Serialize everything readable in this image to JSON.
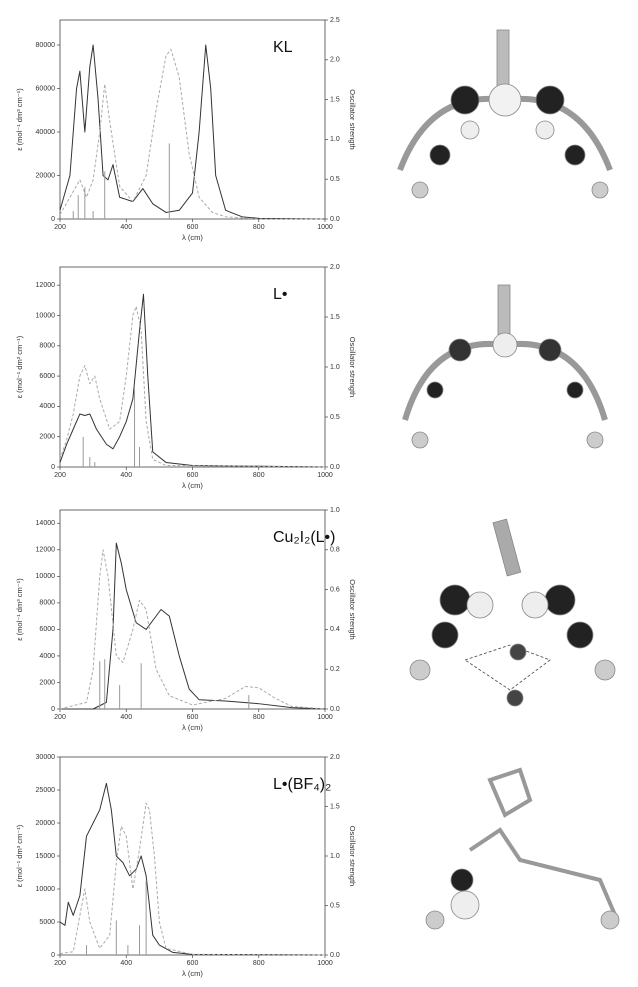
{
  "chart_data": [
    {
      "type": "line",
      "title": "KL",
      "xlabel": "λ (cm)",
      "ylabel": "ε (mol⁻¹ dm³ cm⁻¹)",
      "y2label": "Oscillator strength",
      "xlim": [
        200,
        1000
      ],
      "xticks": [
        200,
        400,
        600,
        800,
        1000
      ],
      "ylim": [
        0,
        91500
      ],
      "yticks": [
        0,
        20000,
        40000,
        60000,
        80000
      ],
      "y2lim": [
        0,
        2.5
      ],
      "y2ticks": [
        {
          "value": 0,
          "label": "0.0"
        },
        0.5,
        {
          "value": 1,
          "label": "1.0"
        },
        1.5,
        {
          "value": 2,
          "label": "2.0"
        },
        2.5
      ],
      "series": [
        {
          "color": "#333333",
          "x": [
            200,
            230,
            250,
            260,
            275,
            290,
            300,
            315,
            330,
            345,
            360,
            380,
            420,
            450,
            480,
            520,
            560,
            600,
            620,
            640,
            655,
            670,
            700,
            750,
            800,
            1000
          ],
          "values": [
            4000,
            20000,
            60000,
            68000,
            40000,
            70000,
            80000,
            55000,
            20000,
            18000,
            25000,
            10000,
            8000,
            14000,
            7000,
            3000,
            4000,
            12000,
            40000,
            80000,
            60000,
            20000,
            4000,
            1000,
            300,
            0
          ]
        },
        {
          "color": "#aaaaaa",
          "dash": true,
          "x": [
            200,
            230,
            260,
            280,
            300,
            320,
            335,
            350,
            380,
            420,
            460,
            490,
            520,
            535,
            560,
            590,
            620,
            660,
            700,
            800,
            1000
          ],
          "values": [
            2000,
            10000,
            18000,
            10000,
            18000,
            40000,
            62000,
            45000,
            15000,
            8000,
            20000,
            50000,
            75000,
            78000,
            65000,
            30000,
            10000,
            3000,
            1000,
            0,
            0
          ]
        },
        {
          "color": "#999999",
          "style": "stick",
          "axis": "y2",
          "x": [
            240,
            255,
            275,
            300,
            335,
            530
          ],
          "values": [
            0.1,
            0.3,
            0.4,
            0.1,
            0.6,
            0.95
          ]
        }
      ]
    },
    {
      "type": "line",
      "title": "L•",
      "xlabel": "λ (cm)",
      "ylabel": "ε (mol⁻¹ dm³ cm⁻¹)",
      "y2label": "Oscillator strength",
      "xlim": [
        200,
        1000
      ],
      "xticks": [
        200,
        400,
        600,
        800,
        1000
      ],
      "ylim": [
        0,
        13200
      ],
      "yticks": [
        0,
        2000,
        4000,
        6000,
        8000,
        10000,
        12000
      ],
      "y2lim": [
        0,
        2
      ],
      "y2ticks": [
        {
          "value": 0,
          "label": "0.0"
        },
        0.5,
        {
          "value": 1,
          "label": "1.0"
        },
        1.5,
        {
          "value": 2,
          "label": "2.0"
        }
      ],
      "series": [
        {
          "color": "#333333",
          "x": [
            200,
            220,
            240,
            260,
            275,
            290,
            310,
            340,
            360,
            380,
            400,
            420,
            440,
            452,
            465,
            480,
            520,
            600,
            1000
          ],
          "values": [
            300,
            1500,
            2500,
            3500,
            3400,
            3500,
            2500,
            1500,
            1200,
            2000,
            3000,
            4500,
            9000,
            11400,
            6000,
            1000,
            300,
            100,
            0
          ]
        },
        {
          "color": "#aaaaaa",
          "dash": true,
          "x": [
            200,
            220,
            240,
            260,
            275,
            290,
            305,
            320,
            350,
            380,
            400,
            420,
            430,
            445,
            460,
            480,
            520,
            1000
          ],
          "values": [
            500,
            1800,
            3500,
            6000,
            6700,
            5500,
            6000,
            4500,
            2500,
            3000,
            6000,
            10000,
            10600,
            9000,
            3000,
            500,
            100,
            0
          ]
        },
        {
          "color": "#999999",
          "style": "stick",
          "axis": "y2",
          "x": [
            270,
            290,
            305,
            425,
            440
          ],
          "values": [
            0.3,
            0.1,
            0.05,
            0.8,
            0.2
          ]
        }
      ]
    },
    {
      "type": "line",
      "title": "Cu₂I₂(L•)",
      "xlabel": "λ (cm)",
      "ylabel": "ε (mol⁻¹ dm³ cm⁻¹)",
      "y2label": "Oscillator strength",
      "xlim": [
        200,
        1000
      ],
      "xticks": [
        200,
        400,
        600,
        800,
        1000
      ],
      "ylim": [
        0,
        15000
      ],
      "yticks": [
        0,
        2000,
        4000,
        6000,
        8000,
        10000,
        12000,
        14000
      ],
      "y2lim": [
        0,
        1
      ],
      "y2ticks": [
        {
          "value": 0,
          "label": "0.0"
        },
        0.2,
        0.4,
        0.6,
        0.8,
        {
          "value": 1,
          "label": "1.0"
        }
      ],
      "series": [
        {
          "color": "#333333",
          "x": [
            200,
            300,
            340,
            360,
            370,
            385,
            400,
            430,
            460,
            490,
            505,
            530,
            560,
            590,
            620,
            700,
            800,
            900,
            1000
          ],
          "values": [
            0,
            0,
            500,
            6000,
            12500,
            11000,
            9000,
            6500,
            6000,
            7000,
            7500,
            7000,
            4000,
            1500,
            700,
            600,
            400,
            100,
            0
          ]
        },
        {
          "color": "#aaaaaa",
          "dash": true,
          "x": [
            200,
            280,
            300,
            320,
            330,
            345,
            370,
            390,
            420,
            440,
            460,
            490,
            530,
            600,
            700,
            760,
            800,
            850,
            900,
            1000
          ],
          "values": [
            0,
            500,
            3000,
            10000,
            12000,
            10000,
            4000,
            3500,
            6000,
            8200,
            7500,
            3000,
            1000,
            300,
            800,
            1700,
            1600,
            800,
            200,
            0
          ]
        },
        {
          "color": "#999999",
          "style": "stick",
          "axis": "y2",
          "x": [
            320,
            335,
            380,
            445,
            770
          ],
          "values": [
            0.24,
            0.25,
            0.12,
            0.23,
            0.07
          ]
        }
      ]
    },
    {
      "type": "line",
      "title": "L•(BF₄)₂",
      "xlabel": "λ (cm)",
      "ylabel": "ε (mol⁻¹ dm³ cm⁻¹)",
      "y2label": "Oscillator strength",
      "xlim": [
        200,
        1000
      ],
      "xticks": [
        200,
        400,
        600,
        800,
        1000
      ],
      "ylim": [
        0,
        30000
      ],
      "yticks": [
        0,
        5000,
        10000,
        15000,
        20000,
        25000,
        30000
      ],
      "y2lim": [
        0,
        2
      ],
      "y2ticks": [
        {
          "value": 0,
          "label": "0.0"
        },
        0.5,
        {
          "value": 1,
          "label": "1.0"
        },
        1.5,
        {
          "value": 2,
          "label": "2.0"
        }
      ],
      "series": [
        {
          "color": "#333333",
          "x": [
            200,
            215,
            225,
            240,
            260,
            280,
            300,
            320,
            340,
            355,
            370,
            390,
            410,
            430,
            445,
            460,
            480,
            500,
            540,
            600,
            1000
          ],
          "values": [
            5000,
            4500,
            8000,
            6000,
            9000,
            18000,
            20000,
            22000,
            26000,
            22000,
            15000,
            14000,
            12000,
            13000,
            15000,
            12000,
            3000,
            1500,
            400,
            100,
            0
          ]
        },
        {
          "color": "#aaaaaa",
          "dash": true,
          "x": [
            200,
            240,
            260,
            275,
            290,
            320,
            350,
            370,
            385,
            400,
            420,
            440,
            460,
            470,
            485,
            500,
            520,
            600,
            1000
          ],
          "values": [
            200,
            500,
            6000,
            10000,
            5000,
            1000,
            3000,
            14000,
            19500,
            18000,
            10000,
            16000,
            23000,
            22000,
            15000,
            5000,
            1000,
            100,
            0
          ]
        },
        {
          "color": "#999999",
          "style": "stick",
          "axis": "y2",
          "x": [
            280,
            370,
            405,
            440,
            460
          ],
          "values": [
            0.1,
            0.35,
            0.1,
            0.3,
            0.75
          ]
        }
      ]
    }
  ]
}
